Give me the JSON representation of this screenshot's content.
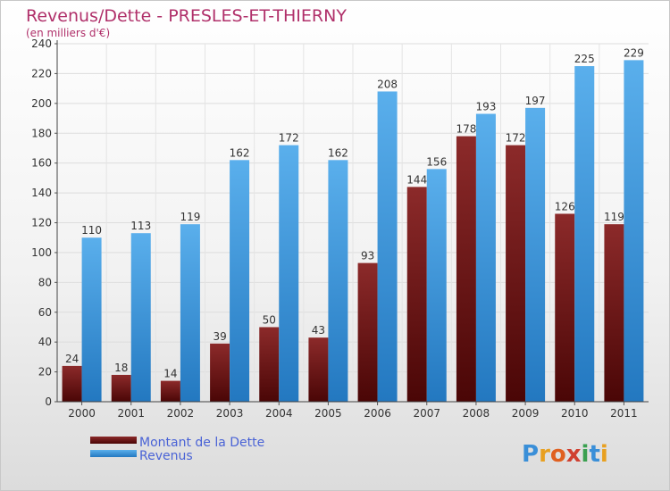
{
  "chart_data": {
    "type": "bar",
    "title": "Revenus/Dette - PRESLES-ET-THIERNY",
    "subtitle": "(en milliers d'€)",
    "categories": [
      "2000",
      "2001",
      "2002",
      "2003",
      "2004",
      "2005",
      "2006",
      "2007",
      "2008",
      "2009",
      "2010",
      "2011"
    ],
    "series": [
      {
        "name": "Montant de la Dette",
        "color": "#7a1a1a",
        "values": [
          24,
          18,
          14,
          39,
          50,
          43,
          93,
          144,
          178,
          172,
          126,
          119
        ]
      },
      {
        "name": "Revenus",
        "color": "#3d9be0",
        "values": [
          110,
          113,
          119,
          162,
          172,
          162,
          208,
          156,
          193,
          197,
          225,
          229
        ]
      }
    ],
    "ylim": [
      0,
      240
    ],
    "yticks": [
      0,
      20,
      40,
      60,
      80,
      100,
      120,
      140,
      160,
      180,
      200,
      220,
      240
    ],
    "grid": true,
    "legend": "bottom-left"
  },
  "logo": {
    "letters": [
      "P",
      "r",
      "o",
      "x",
      "i",
      "t",
      "i"
    ],
    "colors": [
      "#3a8fd8",
      "#e8a020",
      "#e06020",
      "#d04030",
      "#3aa050",
      "#3a8fd8",
      "#e8a020"
    ]
  }
}
